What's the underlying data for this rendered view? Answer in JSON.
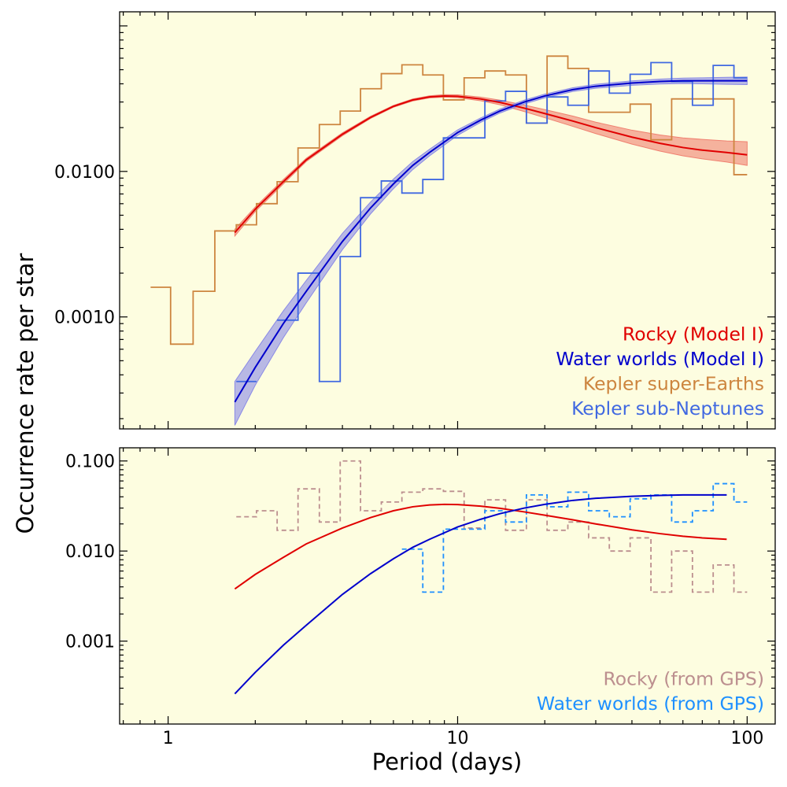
{
  "figure": {
    "ylabel": "Occurrence rate per star",
    "xlabel": "Period (days)",
    "background_color": "#fdfde0",
    "x_scale": "log",
    "y_scale": "log",
    "shared_x_tick_labels": [
      "1",
      "10",
      "100"
    ]
  },
  "chart_data": [
    {
      "type": "line",
      "panel": "top",
      "xlim": [
        0.68,
        125
      ],
      "ylim": [
        0.00017,
        0.125
      ],
      "x_scale": "log",
      "y_scale": "log",
      "ytick_values": [
        0.001,
        0.01
      ],
      "ytick_labels": [
        "0.0010",
        "0.0100"
      ],
      "legend_position": "lower right",
      "legend": [
        {
          "label": "Rocky (Model I)",
          "color": "#e00000"
        },
        {
          "label": "Water worlds (Model I)",
          "color": "#0000cc"
        },
        {
          "label": "Kepler super-Earths",
          "color": "#cd853f"
        },
        {
          "label": "Kepler sub-Neptunes",
          "color": "#4169e1"
        }
      ],
      "series": [
        {
          "name": "Rocky (Model I)",
          "kind": "model_band",
          "color": "#e00000",
          "band_color": "#f08070",
          "x": [
            1.7,
            2,
            2.5,
            3,
            4,
            5,
            6,
            7,
            8,
            9,
            10,
            12,
            14,
            17,
            20,
            25,
            30,
            40,
            50,
            60,
            70,
            85,
            100
          ],
          "y": [
            0.0038,
            0.0055,
            0.0085,
            0.012,
            0.018,
            0.0235,
            0.028,
            0.031,
            0.0325,
            0.033,
            0.0328,
            0.0315,
            0.0298,
            0.0272,
            0.025,
            0.0222,
            0.02,
            0.0172,
            0.0156,
            0.0146,
            0.014,
            0.0135,
            0.013
          ],
          "y_low": [
            0.0036,
            0.0053,
            0.0082,
            0.0117,
            0.0176,
            0.0231,
            0.0276,
            0.0305,
            0.032,
            0.0324,
            0.0321,
            0.0306,
            0.0287,
            0.0258,
            0.0234,
            0.0204,
            0.0182,
            0.0154,
            0.0138,
            0.0128,
            0.0122,
            0.0116,
            0.011
          ],
          "y_high": [
            0.004,
            0.0057,
            0.0088,
            0.0123,
            0.0184,
            0.0239,
            0.0284,
            0.0315,
            0.0331,
            0.0337,
            0.0336,
            0.0324,
            0.0309,
            0.0286,
            0.0266,
            0.024,
            0.0218,
            0.0192,
            0.0178,
            0.017,
            0.0166,
            0.0162,
            0.016
          ]
        },
        {
          "name": "Water worlds (Model I)",
          "kind": "model_band",
          "color": "#0000cc",
          "band_color": "#8a8ae6",
          "x": [
            1.7,
            2,
            2.5,
            3,
            4,
            5,
            6,
            7,
            8,
            10,
            12,
            14,
            17,
            20,
            25,
            30,
            40,
            50,
            60,
            70,
            85,
            100
          ],
          "y": [
            0.00026,
            0.00045,
            0.0009,
            0.0015,
            0.0033,
            0.0056,
            0.0082,
            0.011,
            0.0135,
            0.0185,
            0.0225,
            0.026,
            0.03,
            0.033,
            0.0365,
            0.0385,
            0.0405,
            0.0415,
            0.042,
            0.042,
            0.042,
            0.042
          ],
          "y_low": [
            0.00018,
            0.00034,
            0.00072,
            0.00125,
            0.0029,
            0.0051,
            0.0076,
            0.0103,
            0.0128,
            0.0177,
            0.0217,
            0.0252,
            0.0291,
            0.032,
            0.0354,
            0.0373,
            0.0391,
            0.0399,
            0.0402,
            0.04,
            0.0397,
            0.0395
          ],
          "y_high": [
            0.00036,
            0.00058,
            0.0011,
            0.00178,
            0.00375,
            0.00615,
            0.00885,
            0.0117,
            0.0142,
            0.0193,
            0.0233,
            0.0268,
            0.0309,
            0.034,
            0.0376,
            0.0397,
            0.0419,
            0.0431,
            0.0438,
            0.044,
            0.0443,
            0.0445
          ]
        },
        {
          "name": "Kepler super-Earths",
          "kind": "step_histogram",
          "line_style": "solid",
          "color": "#cd853f",
          "bin_edges": [
            0.87,
            1.02,
            1.22,
            1.45,
            1.72,
            2.02,
            2.38,
            2.81,
            3.33,
            3.93,
            4.62,
            5.45,
            6.42,
            7.58,
            8.93,
            10.53,
            12.42,
            14.64,
            17.28,
            20.37,
            24.03,
            28.35,
            33.42,
            39.43,
            46.53,
            54.86,
            64.73,
            76.33,
            90.03,
            100.0
          ],
          "values": [
            0.0016,
            0.00065,
            0.0015,
            0.0039,
            0.0043,
            0.006,
            0.0085,
            0.0145,
            0.021,
            0.026,
            0.037,
            0.047,
            0.054,
            0.046,
            0.031,
            0.044,
            0.049,
            0.046,
            0.0215,
            0.062,
            0.051,
            0.0255,
            0.0255,
            0.029,
            0.0165,
            0.0315,
            0.0315,
            0.0315,
            0.0095
          ]
        },
        {
          "name": "Kepler sub-Neptunes",
          "kind": "step_histogram",
          "line_style": "solid",
          "color": "#4169e1",
          "bin_edges": [
            1.72,
            2.02,
            2.38,
            2.81,
            3.33,
            3.93,
            4.62,
            5.45,
            6.42,
            7.58,
            8.93,
            10.53,
            12.42,
            14.64,
            17.28,
            20.37,
            24.03,
            28.35,
            33.42,
            39.43,
            46.53,
            54.86,
            64.73,
            76.33,
            90.03,
            100.0
          ],
          "values": [
            0.00036,
            null,
            0.00095,
            0.002,
            0.00036,
            0.0026,
            0.0066,
            0.0086,
            0.0071,
            0.0088,
            0.017,
            0.017,
            0.0305,
            0.0355,
            0.0215,
            0.0325,
            0.0285,
            0.049,
            0.0345,
            0.0465,
            0.056,
            0.0415,
            0.0285,
            0.0535,
            0.044
          ]
        }
      ]
    },
    {
      "type": "line",
      "panel": "bottom",
      "xlim": [
        0.68,
        125
      ],
      "ylim": [
        0.00012,
        0.14
      ],
      "x_scale": "log",
      "y_scale": "log",
      "xlabel": "Period (days)",
      "xtick_values": [
        1,
        10,
        100
      ],
      "xtick_labels": [
        "1",
        "10",
        "100"
      ],
      "ytick_values": [
        0.001,
        0.01,
        0.1
      ],
      "ytick_labels": [
        "0.001",
        "0.010",
        "0.100"
      ],
      "legend_position": "lower right",
      "legend": [
        {
          "label": "Rocky (from GPS)",
          "color": "#bc8f8f"
        },
        {
          "label": "Water worlds (from GPS)",
          "color": "#1e90ff"
        }
      ],
      "series": [
        {
          "name": "Rocky (Model I)",
          "kind": "line",
          "legend": false,
          "color": "#e00000",
          "x": [
            1.7,
            2,
            2.5,
            3,
            4,
            5,
            6,
            7,
            8,
            9,
            10,
            12,
            14,
            17,
            20,
            25,
            30,
            40,
            50,
            60,
            70,
            85
          ],
          "y": [
            0.0038,
            0.0055,
            0.0085,
            0.012,
            0.018,
            0.0235,
            0.028,
            0.031,
            0.0325,
            0.033,
            0.0328,
            0.0315,
            0.0298,
            0.0272,
            0.025,
            0.0222,
            0.02,
            0.0172,
            0.0156,
            0.0146,
            0.014,
            0.0135
          ]
        },
        {
          "name": "Water worlds (Model I)",
          "kind": "line",
          "legend": false,
          "color": "#0000cc",
          "x": [
            1.7,
            2,
            2.5,
            3,
            4,
            5,
            6,
            7,
            8,
            10,
            12,
            14,
            17,
            20,
            25,
            30,
            40,
            50,
            60,
            70,
            85
          ],
          "y": [
            0.00026,
            0.00045,
            0.0009,
            0.0015,
            0.0033,
            0.0056,
            0.0082,
            0.011,
            0.0135,
            0.0185,
            0.0225,
            0.026,
            0.03,
            0.033,
            0.0365,
            0.0385,
            0.0405,
            0.0415,
            0.042,
            0.042,
            0.042
          ]
        },
        {
          "name": "Rocky (from GPS)",
          "kind": "step_histogram",
          "line_style": "dashed",
          "color": "#bc8f8f",
          "bin_edges": [
            1.72,
            2.02,
            2.38,
            2.81,
            3.33,
            3.93,
            4.62,
            5.45,
            6.42,
            7.58,
            8.93,
            10.53,
            12.42,
            14.64,
            17.28,
            20.37,
            24.03,
            28.35,
            33.42,
            39.43,
            46.53,
            54.86,
            64.73,
            76.33,
            90.03,
            100.0
          ],
          "values": [
            0.024,
            0.028,
            0.017,
            0.049,
            0.021,
            0.1,
            0.028,
            0.035,
            0.045,
            0.049,
            0.046,
            0.018,
            0.037,
            0.017,
            0.037,
            0.017,
            0.021,
            0.014,
            0.01,
            0.014,
            0.0035,
            0.01,
            0.0035,
            0.007,
            0.0035
          ]
        },
        {
          "name": "Water worlds (from GPS)",
          "kind": "step_histogram",
          "line_style": "dashed",
          "color": "#1e90ff",
          "bin_edges": [
            6.42,
            7.58,
            8.93,
            10.53,
            12.42,
            14.64,
            17.28,
            20.37,
            24.03,
            28.35,
            33.42,
            39.43,
            46.53,
            54.86,
            64.73,
            76.33,
            90.03,
            100.0
          ],
          "values": [
            0.0105,
            0.0035,
            0.0175,
            0.0175,
            0.028,
            0.021,
            0.042,
            0.031,
            0.045,
            0.028,
            0.024,
            0.038,
            0.042,
            0.021,
            0.028,
            0.056,
            0.035
          ]
        }
      ]
    }
  ]
}
